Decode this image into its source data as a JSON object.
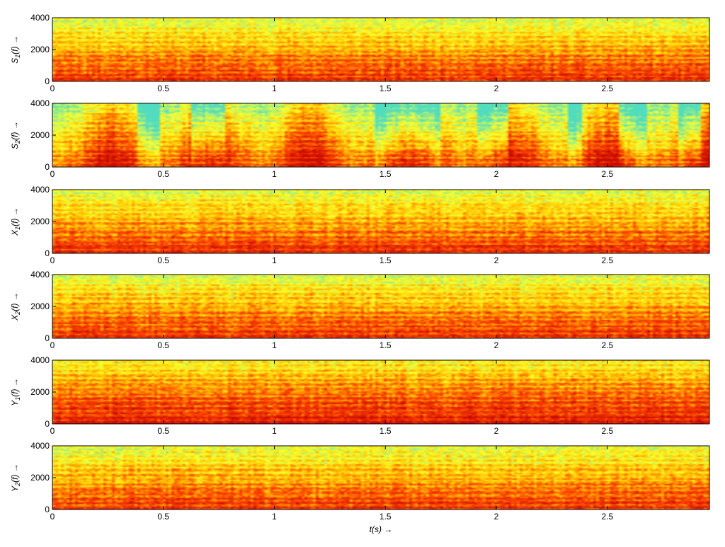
{
  "chart_data": {
    "type": "heatmap",
    "subtype": "spectrogram",
    "colormap": "jet",
    "xlim": [
      0,
      2.96
    ],
    "ylim": [
      0,
      4000
    ],
    "x_ticks": [
      0,
      0.5,
      1,
      1.5,
      2,
      2.5
    ],
    "x_tick_labels": [
      "0",
      "0.5",
      "1",
      "1.5",
      "2",
      "2.5"
    ],
    "y_ticks": [
      0,
      2000,
      4000
    ],
    "y_tick_labels": [
      "0",
      "2000",
      "4000"
    ],
    "xlabel": "t(s) →",
    "grid": false,
    "legend": "none",
    "panels": [
      {
        "ylabel_base": "S",
        "ylabel_sub": "1",
        "ylabel_tail": "(f)  →",
        "style": "harmonic",
        "seed": 11,
        "quiet_segments": []
      },
      {
        "ylabel_base": "S",
        "ylabel_sub": "2",
        "ylabel_tail": "(f)  →",
        "style": "bursty",
        "seed": 23,
        "quiet_segments": [
          [
            0.38,
            0.48
          ],
          [
            0.62,
            0.78
          ],
          [
            1.45,
            1.75
          ],
          [
            1.92,
            2.05
          ],
          [
            2.32,
            2.38
          ],
          [
            2.55,
            2.68
          ],
          [
            2.82,
            2.92
          ]
        ]
      },
      {
        "ylabel_base": "X",
        "ylabel_sub": "1",
        "ylabel_tail": "(f)  →",
        "style": "mix",
        "seed": 37,
        "quiet_segments": []
      },
      {
        "ylabel_base": "X",
        "ylabel_sub": "2",
        "ylabel_tail": "(f)  →",
        "style": "mix",
        "seed": 41,
        "quiet_segments": []
      },
      {
        "ylabel_base": "Y",
        "ylabel_sub": "1",
        "ylabel_tail": "(f)  →",
        "style": "dense",
        "seed": 53,
        "quiet_segments": []
      },
      {
        "ylabel_base": "Y",
        "ylabel_sub": "2",
        "ylabel_tail": "(f)  →",
        "style": "mix",
        "seed": 67,
        "quiet_segments": []
      }
    ]
  }
}
